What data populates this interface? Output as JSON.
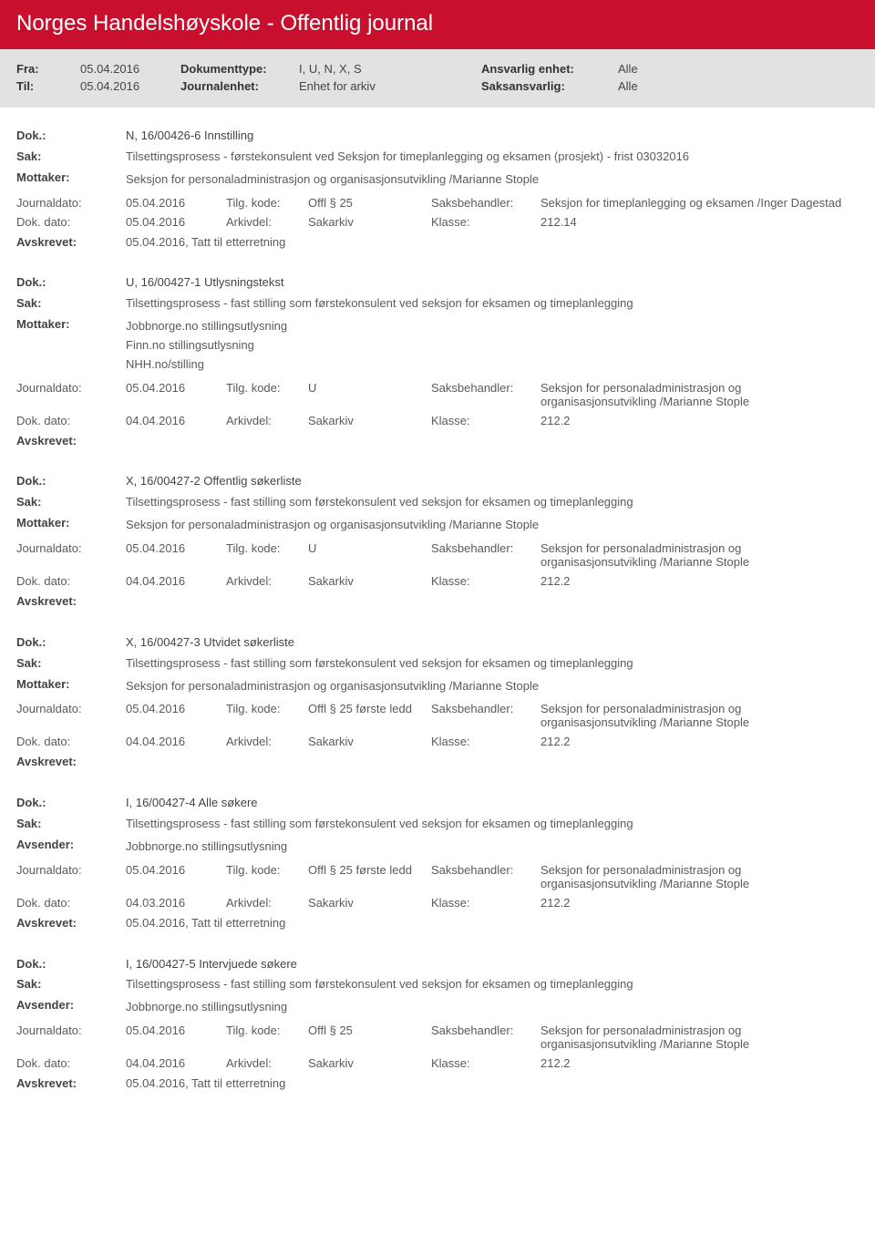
{
  "header": {
    "title": "Norges Handelshøyskole - Offentlig journal",
    "rows": [
      {
        "l1": "Fra:",
        "v1": "05.04.2016",
        "l2": "Dokumenttype:",
        "v2": "I, U, N, X, S",
        "l3": "Ansvarlig enhet:",
        "v3": "Alle"
      },
      {
        "l1": "Til:",
        "v1": "05.04.2016",
        "l2": "Journalenhet:",
        "v2": "Enhet for arkiv",
        "l3": "Saksansvarlig:",
        "v3": "Alle"
      }
    ]
  },
  "labels": {
    "dok": "Dok.:",
    "sak": "Sak:",
    "mottaker": "Mottaker:",
    "avsender": "Avsender:",
    "journaldato": "Journaldato:",
    "tilgkode": "Tilg. kode:",
    "saksbehandler": "Saksbehandler:",
    "dokdato": "Dok. dato:",
    "arkivdel": "Arkivdel:",
    "klasse": "Klasse:",
    "avskrevet": "Avskrevet:"
  },
  "entries": [
    {
      "dok": "N, 16/00426-6 Innstilling",
      "sak": "Tilsettingsprosess - førstekonsulent ved Seksjon for timeplanlegging og eksamen (prosjekt) - frist 03032016",
      "partyLabel": "Mottaker:",
      "party": [
        "Seksjon for personaladministrasjon og organisasjonsutvikling /Marianne Stople"
      ],
      "journaldato": "05.04.2016",
      "tilgkode": "Offl § 25",
      "saksbehandler": "Seksjon for timeplanlegging og eksamen /Inger Dagestad",
      "dokdato": "05.04.2016",
      "arkivdel": "Sakarkiv",
      "klasse": "212.14",
      "avskrevet": "05.04.2016, Tatt til etterretning"
    },
    {
      "dok": "U, 16/00427-1 Utlysningstekst",
      "sak": "Tilsettingsprosess - fast stilling som førstekonsulent ved seksjon for eksamen og timeplanlegging",
      "partyLabel": "Mottaker:",
      "party": [
        "Jobbnorge.no stillingsutlysning",
        "Finn.no stillingsutlysning",
        "NHH.no/stilling"
      ],
      "journaldato": "05.04.2016",
      "tilgkode": "U",
      "saksbehandler": "Seksjon for personaladministrasjon og organisasjonsutvikling /Marianne Stople",
      "dokdato": "04.04.2016",
      "arkivdel": "Sakarkiv",
      "klasse": "212.2",
      "avskrevet": ""
    },
    {
      "dok": "X, 16/00427-2 Offentlig søkerliste",
      "sak": "Tilsettingsprosess - fast stilling som førstekonsulent ved seksjon for eksamen og timeplanlegging",
      "partyLabel": "Mottaker:",
      "party": [
        "Seksjon for personaladministrasjon og organisasjonsutvikling /Marianne Stople"
      ],
      "journaldato": "05.04.2016",
      "tilgkode": "U",
      "saksbehandler": "Seksjon for personaladministrasjon og organisasjonsutvikling /Marianne Stople",
      "dokdato": "04.04.2016",
      "arkivdel": "Sakarkiv",
      "klasse": "212.2",
      "avskrevet": ""
    },
    {
      "dok": "X, 16/00427-3 Utvidet søkerliste",
      "sak": "Tilsettingsprosess - fast stilling som førstekonsulent ved seksjon for eksamen og timeplanlegging",
      "partyLabel": "Mottaker:",
      "party": [
        "Seksjon for personaladministrasjon og organisasjonsutvikling /Marianne Stople"
      ],
      "journaldato": "05.04.2016",
      "tilgkode": "Offl § 25 første ledd",
      "saksbehandler": "Seksjon for personaladministrasjon og organisasjonsutvikling /Marianne Stople",
      "dokdato": "04.04.2016",
      "arkivdel": "Sakarkiv",
      "klasse": "212.2",
      "avskrevet": ""
    },
    {
      "dok": "I, 16/00427-4 Alle søkere",
      "sak": "Tilsettingsprosess - fast stilling som førstekonsulent ved seksjon for eksamen og timeplanlegging",
      "partyLabel": "Avsender:",
      "party": [
        "Jobbnorge.no stillingsutlysning"
      ],
      "journaldato": "05.04.2016",
      "tilgkode": "Offl § 25 første ledd",
      "saksbehandler": "Seksjon for personaladministrasjon og organisasjonsutvikling /Marianne Stople",
      "dokdato": "04.03.2016",
      "arkivdel": "Sakarkiv",
      "klasse": "212.2",
      "avskrevet": "05.04.2016, Tatt til etterretning"
    },
    {
      "dok": "I, 16/00427-5 Intervjuede søkere",
      "sak": "Tilsettingsprosess - fast stilling som førstekonsulent ved seksjon for eksamen og timeplanlegging",
      "partyLabel": "Avsender:",
      "party": [
        "Jobbnorge.no stillingsutlysning"
      ],
      "journaldato": "05.04.2016",
      "tilgkode": "Offl § 25",
      "saksbehandler": "Seksjon for personaladministrasjon og organisasjonsutvikling /Marianne Stople",
      "dokdato": "04.04.2016",
      "arkivdel": "Sakarkiv",
      "klasse": "212.2",
      "avskrevet": "05.04.2016, Tatt til etterretning"
    }
  ]
}
